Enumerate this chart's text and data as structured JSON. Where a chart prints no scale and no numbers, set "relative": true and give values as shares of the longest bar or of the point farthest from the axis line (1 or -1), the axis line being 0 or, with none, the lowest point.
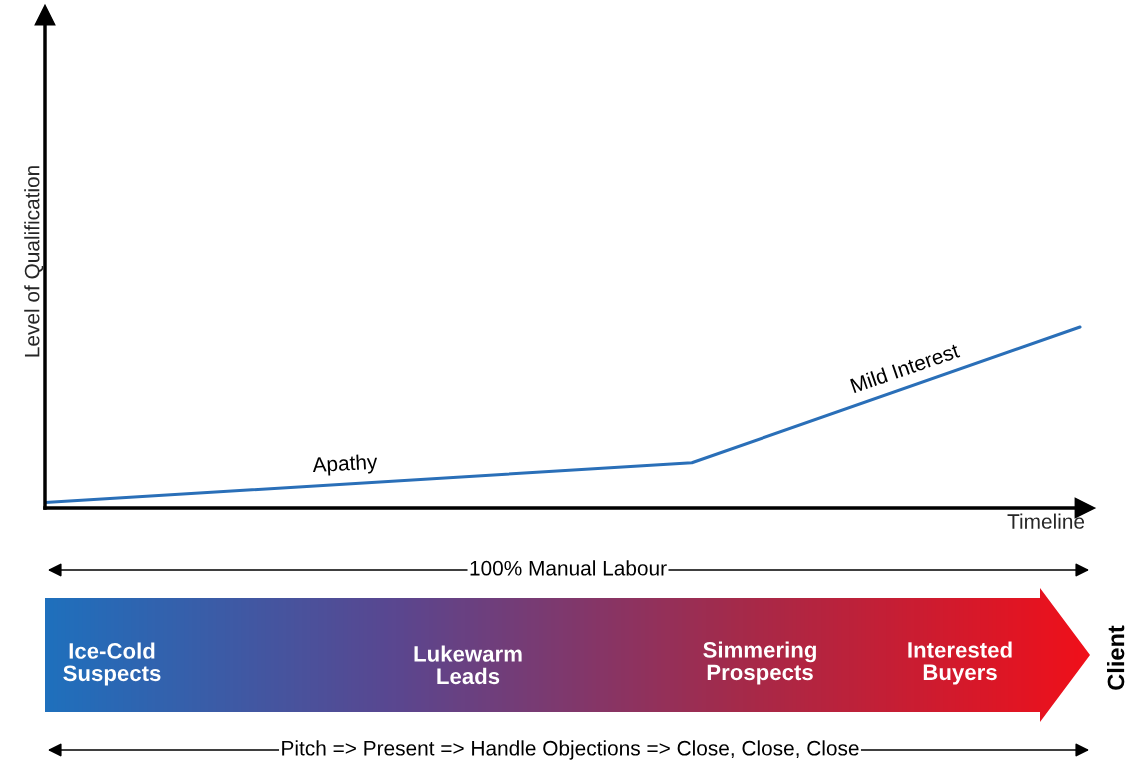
{
  "chart_data": {
    "type": "line",
    "relative": true,
    "xlabel": "Timeline",
    "ylabel": "Level of Qualification",
    "categories": [
      null,
      null,
      null,
      null,
      null,
      null,
      null,
      null,
      null
    ],
    "series": [
      {
        "color": "#2a6fb8",
        "values": [
          0.03,
          null,
          null,
          null,
          null,
          0.25,
          null,
          null,
          1
        ]
      }
    ],
    "annotations": [
      "Apathy",
      "Mild Interest",
      "100% Manual Labour",
      "Ice-Cold\nSuspects",
      "Lukewarm\nLeads",
      "Simmering\nProspects",
      "Interested\nBuyers",
      "Client",
      "Pitch => Present => Handle Objections => Close, Close, Close"
    ],
    "legend": false,
    "tick_labels": false,
    "marker": "none",
    "line_style": "solid"
  }
}
